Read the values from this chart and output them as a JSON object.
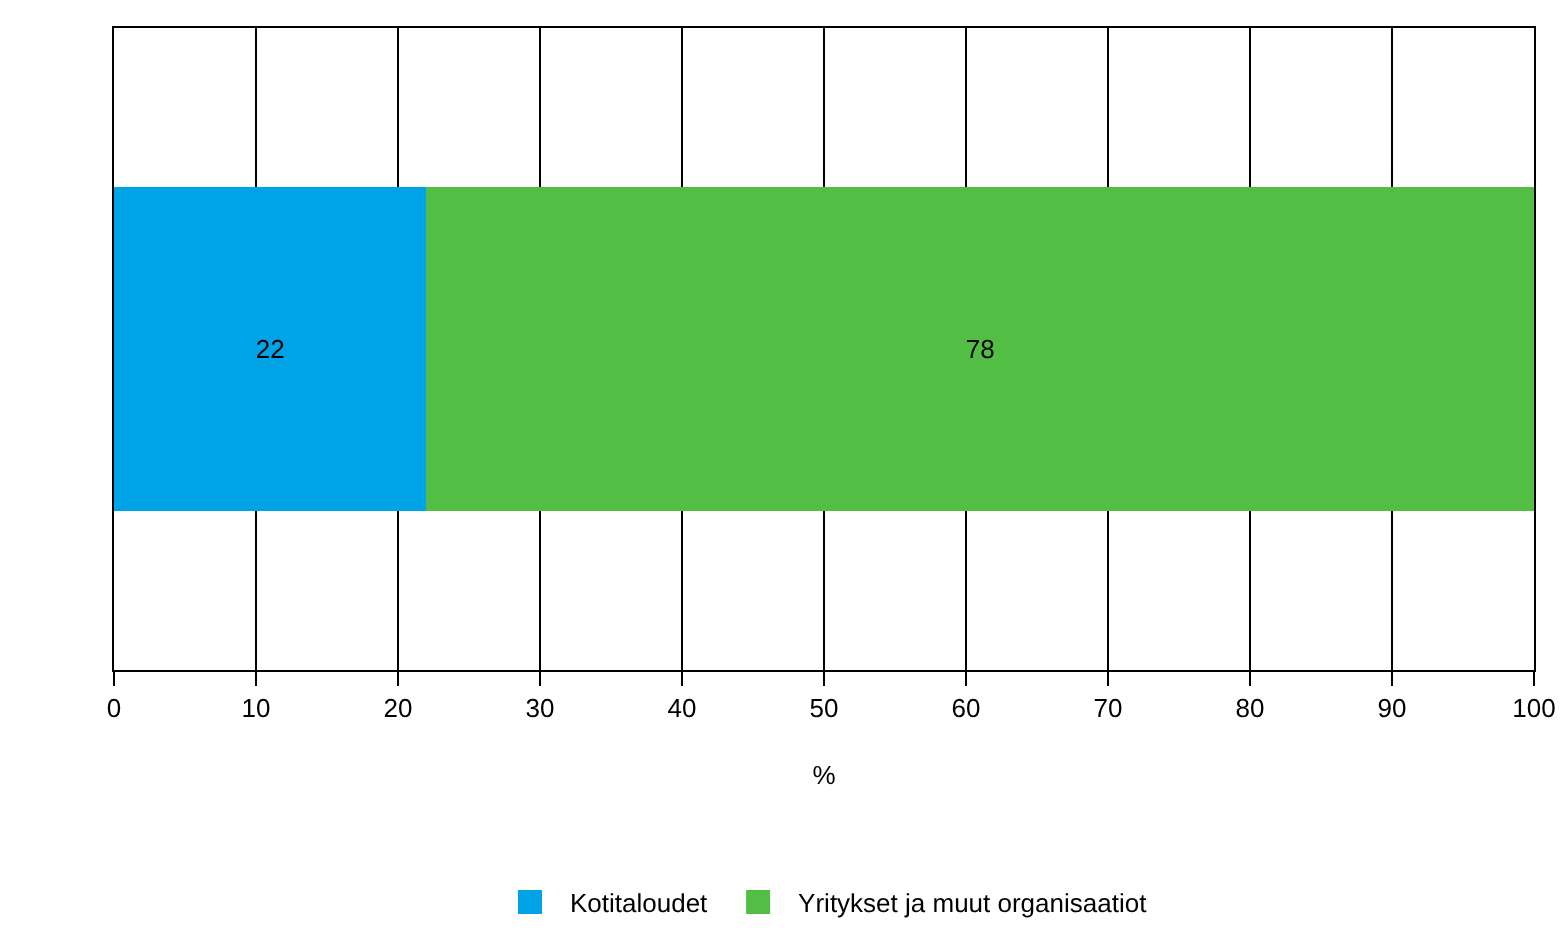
{
  "chart_data": {
    "type": "bar",
    "orientation": "horizontal",
    "stacked": true,
    "categories": [
      null
    ],
    "series": [
      {
        "name": "Kotitaloudet",
        "color": "#00a3e6",
        "values": [
          22
        ]
      },
      {
        "name": "Yritykset ja muut organisaatiot",
        "color": "#52bf44",
        "values": [
          78
        ]
      }
    ],
    "xlim": [
      0,
      100
    ],
    "xticks": [
      0,
      10,
      20,
      30,
      40,
      50,
      60,
      70,
      80,
      90,
      100
    ],
    "xlabel": "%",
    "grid": "x",
    "legend": "bottom",
    "data_labels": true
  }
}
